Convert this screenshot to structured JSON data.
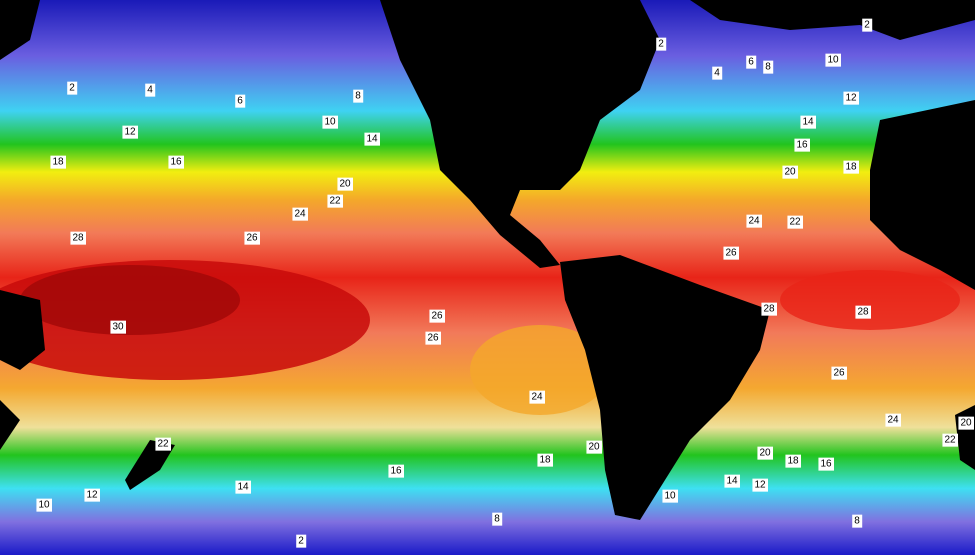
{
  "contour_labels": [
    2,
    4,
    6,
    8,
    10,
    12,
    14,
    16,
    18,
    20,
    22,
    24,
    26,
    28,
    30,
    26,
    26,
    24,
    22,
    20,
    18,
    16,
    14,
    12,
    10,
    8,
    2,
    2,
    2,
    4,
    6,
    8,
    10,
    12,
    14,
    16,
    18,
    20,
    24,
    22,
    26,
    28,
    28,
    26,
    24,
    22,
    20,
    20,
    18,
    16,
    14,
    12,
    10,
    8
  ]
}
